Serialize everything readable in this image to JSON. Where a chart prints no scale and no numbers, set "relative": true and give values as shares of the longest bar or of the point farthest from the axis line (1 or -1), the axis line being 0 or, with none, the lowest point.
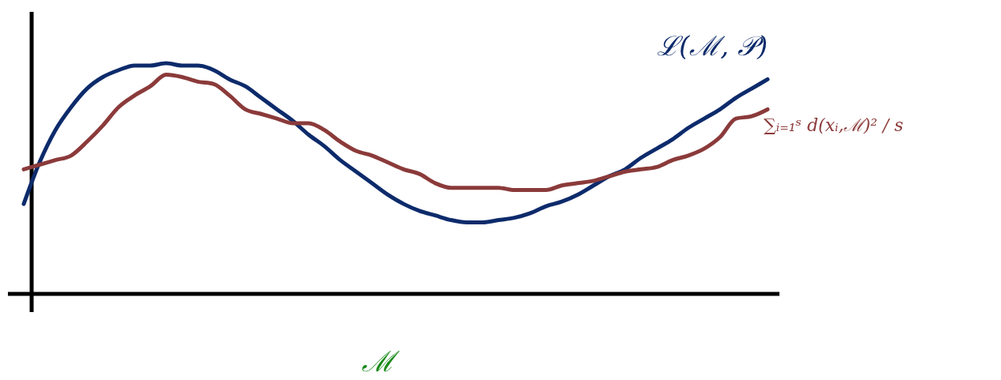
{
  "chart_data": {
    "type": "line",
    "relative": true,
    "xlabel": "ℳ",
    "legend": false,
    "marker": "none",
    "line_style": "solid",
    "categories": [
      null,
      null,
      null,
      null,
      null,
      null,
      null,
      null,
      null,
      null,
      null,
      null,
      null,
      null,
      null,
      null,
      null,
      null,
      null,
      null,
      null,
      null,
      null,
      null,
      null,
      null,
      null,
      null,
      null,
      null,
      null,
      null,
      null,
      null,
      null,
      null,
      null,
      null,
      null,
      null,
      null,
      null,
      null,
      null,
      null,
      null,
      null,
      null
    ],
    "series": [
      {
        "name": "ℒ(ℳ, 𝒫)",
        "color": "#0d2b6b",
        "values": [
          0.39,
          0.57,
          0.71,
          0.81,
          0.89,
          0.94,
          0.97,
          0.99,
          0.99,
          1,
          0.99,
          0.99,
          0.97,
          0.93,
          0.9,
          0.85,
          0.8,
          0.75,
          0.69,
          0.64,
          0.58,
          0.53,
          0.48,
          0.43,
          0.39,
          0.36,
          0.34,
          0.32,
          0.31,
          0.31,
          0.32,
          0.33,
          0.35,
          0.38,
          0.4,
          0.43,
          0.47,
          0.51,
          0.54,
          0.59,
          0.63,
          0.67,
          0.72,
          0.76,
          0.8,
          0.85,
          0.89,
          0.93
        ]
      },
      {
        "name": "∑ᵢ₌₁ˢ d(xᵢ,ℳ)² / s",
        "color": "#8b3a3a",
        "values": [
          0.54,
          0.56,
          0.58,
          0.6,
          0.66,
          0.73,
          0.81,
          0.86,
          0.9,
          0.95,
          0.94,
          0.92,
          0.91,
          0.86,
          0.8,
          0.78,
          0.76,
          0.74,
          0.74,
          0.71,
          0.66,
          0.62,
          0.6,
          0.57,
          0.54,
          0.52,
          0.48,
          0.46,
          0.46,
          0.46,
          0.46,
          0.45,
          0.45,
          0.45,
          0.47,
          0.48,
          0.49,
          0.51,
          0.53,
          0.54,
          0.55,
          0.58,
          0.6,
          0.63,
          0.68,
          0.76,
          0.77,
          0.8
        ]
      }
    ]
  }
}
